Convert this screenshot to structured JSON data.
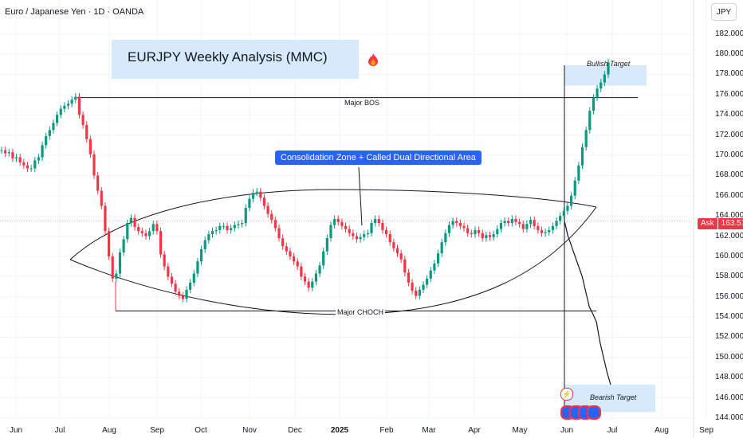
{
  "header": {
    "symbol": "Euro / Japanese Yen · 1D · OANDA",
    "currency": "JPY"
  },
  "title": "EURJPY Weekly Analysis (MMC)",
  "title_icon": "fire-icon",
  "price_tag": {
    "label": "Ask",
    "value": "163.516"
  },
  "colors": {
    "up": "#089981",
    "down": "#f23645",
    "line": "#131722",
    "zone": "#d6eafb",
    "callout": "#2962ff"
  },
  "annotations": {
    "callout": "Consolidation Zone + Called Dual Directional Area",
    "bos": "Major BOS",
    "choch": "Major CHOCH",
    "bullish": "Bullish Target",
    "bearish": "Bearish Target"
  },
  "icons": {
    "flash": "lightning-icon",
    "events": "event-flag-icon"
  },
  "chart_data": {
    "type": "line",
    "title": "EURJPY Weekly Analysis (MMC)",
    "xlabel": "",
    "ylabel": "",
    "x_ticks": [
      "Jun",
      "Jul",
      "Aug",
      "Sep",
      "Oct",
      "Nov",
      "Dec",
      "2025",
      "Feb",
      "Mar",
      "Apr",
      "May",
      "Jun",
      "Jul",
      "Aug",
      "Sep"
    ],
    "y_ticks": [
      "182.000",
      "180.000",
      "178.000",
      "176.000",
      "174.000",
      "172.000",
      "170.000",
      "168.000",
      "166.000",
      "164.000",
      "162.000",
      "160.000",
      "158.000",
      "156.000",
      "154.000",
      "152.000",
      "150.000",
      "148.000",
      "146.000",
      "144.000"
    ],
    "ylim": [
      144,
      183
    ],
    "grid": true,
    "series": [
      {
        "values": [
          170.5,
          170.2,
          170.3,
          169.7,
          169.8,
          169.3,
          169,
          168.7,
          168.7,
          169.5,
          169.8,
          171,
          171.9,
          172.5,
          173.2,
          174,
          174.6,
          174.9,
          175.1,
          175.5,
          175.8,
          174,
          173,
          171.6,
          170.1,
          168,
          166.5,
          165,
          162.5,
          160,
          157.8,
          158.3,
          160.4,
          161.7,
          163.3,
          163.8,
          162.9,
          162.5,
          162.3,
          162,
          162.5,
          163.2,
          162.5,
          160.2,
          159,
          158,
          157.3,
          156.5,
          156.1,
          155.8,
          156.7,
          157.4,
          158.3,
          159.5,
          160.7,
          161.6,
          162.2,
          162.5,
          162.6,
          163,
          163,
          162.6,
          162.8,
          163.1,
          163.2,
          163.3,
          164.8,
          165.7,
          166.3,
          166.4,
          165.8,
          165,
          164.2,
          163.6,
          162.8,
          161.8,
          161,
          160.5,
          160,
          159.5,
          159,
          158,
          157.5,
          156.9,
          157.5,
          158.3,
          159.1,
          160.5,
          161.8,
          163.1,
          163.7,
          163.4,
          163,
          162.7,
          162.3,
          162,
          161.7,
          161.9,
          162.2,
          162.3,
          163.3,
          163.7,
          163.3,
          162.6,
          162.2,
          161.4,
          160.8,
          160.3,
          159.7,
          158.4,
          157.4,
          156.6,
          156.1,
          156.7,
          157.2,
          157.8,
          158.6,
          159.3,
          160.3,
          161.4,
          162.3,
          163.1,
          163.5,
          163.3,
          163,
          162.8,
          162.3,
          162.2,
          162.6,
          162.3,
          161.8,
          162.1,
          161.9,
          162.2,
          162.7,
          163.3,
          163.5,
          163.3,
          163.7,
          163.4,
          163.2,
          162.7,
          163.2,
          163.6,
          163,
          162.6,
          162.3,
          162.4,
          162.6,
          163,
          163.5,
          164,
          164.5,
          165,
          166,
          167.5,
          169,
          170.8,
          172.5,
          174.4,
          175.7,
          176.6,
          177.2,
          178,
          179.2
        ],
        "color": "#131722"
      }
    ],
    "levels": [
      {
        "label": "Major BOS",
        "value": 175.7
      },
      {
        "label": "Major CHOCH",
        "value": 154.6
      },
      {
        "label": "Ask",
        "value": 163.516
      }
    ],
    "zones": [
      {
        "label": "Bullish Target",
        "y_range": [
          176.9,
          178.9
        ]
      },
      {
        "label": "Bearish Target",
        "y_range": [
          144.6,
          147.3
        ]
      }
    ],
    "projection_down": [
      163.5,
      162,
      161,
      160,
      159,
      158,
      156.5,
      155,
      154.3,
      153.5,
      151.5,
      150,
      148.5,
      147.3
    ]
  }
}
